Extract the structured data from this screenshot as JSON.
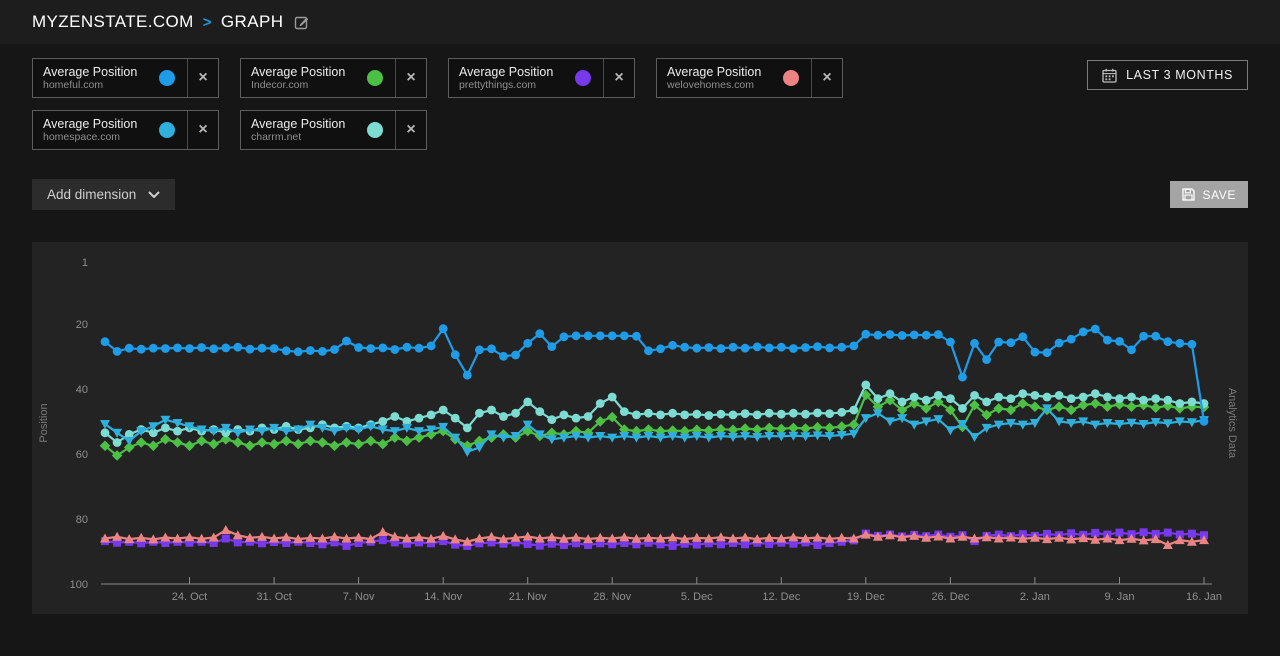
{
  "header": {
    "site": "MYZENSTATE.COM",
    "page": "GRAPH",
    "separator": ">"
  },
  "date_range": {
    "label": "LAST 3 MONTHS"
  },
  "toolbar": {
    "add_dimension": "Add dimension",
    "save": "SAVE"
  },
  "metrics": [
    {
      "label": "Average Position",
      "domain": "homeful.com",
      "color": "#1f9ce8",
      "marker": "circle"
    },
    {
      "label": "Average Position",
      "domain": "Indecor.com",
      "color": "#4cbf45",
      "marker": "diamond"
    },
    {
      "label": "Average Position",
      "domain": "prettythings.com",
      "color": "#7838ec",
      "marker": "square"
    },
    {
      "label": "Average Position",
      "domain": "welovehomes.com",
      "color": "#ec8383",
      "marker": "triangle-up"
    },
    {
      "label": "Average Position",
      "domain": "homespace.com",
      "color": "#2fafdc",
      "marker": "triangle-down"
    },
    {
      "label": "Average Position",
      "domain": "charrm.net",
      "color": "#7cdcd2",
      "marker": "circle"
    }
  ],
  "chart_data": {
    "type": "line",
    "title": "",
    "ylabel": "Position",
    "ylabel_right": "Analytics Data",
    "y_inverted": true,
    "ylim": [
      1,
      100
    ],
    "y_ticks": [
      1,
      20,
      40,
      60,
      80,
      100
    ],
    "grid": false,
    "n_points": 92,
    "x_tick_labels": [
      "24. Oct",
      "31. Oct",
      "7. Nov",
      "14. Nov",
      "21. Nov",
      "28. Nov",
      "5. Dec",
      "12. Dec",
      "19. Dec",
      "26. Dec",
      "2. Jan",
      "9. Jan",
      "16. Jan"
    ],
    "x_tick_indices": [
      7,
      14,
      21,
      28,
      35,
      42,
      49,
      56,
      63,
      70,
      77,
      84,
      91
    ],
    "draw_order": [
      2,
      3,
      1,
      5,
      4,
      0
    ],
    "series": [
      {
        "name": "Average Position homeful.com",
        "domain": "homeful.com",
        "color": "#1f9ce8",
        "marker": "circle",
        "values": [
          25.5,
          28.5,
          27.5,
          27.8,
          27.5,
          27.6,
          27.4,
          27.6,
          27.3,
          27.7,
          27.4,
          27.2,
          27.8,
          27.5,
          27.6,
          28.3,
          28.6,
          28.2,
          28.5,
          27.9,
          25.3,
          27.3,
          27.6,
          27.4,
          27.9,
          27.2,
          27.5,
          26.8,
          21.5,
          29.5,
          35.8,
          28.0,
          27.7,
          30.0,
          29.6,
          26.0,
          23.0,
          27.0,
          24.0,
          23.7,
          23.7,
          23.7,
          23.7,
          23.7,
          23.8,
          28.3,
          27.7,
          26.6,
          27.2,
          27.5,
          27.3,
          27.6,
          27.2,
          27.5,
          27.1,
          27.4,
          27.2,
          27.6,
          27.3,
          27.0,
          27.4,
          27.2,
          26.8,
          23.2,
          23.5,
          23.3,
          23.6,
          23.4,
          23.5,
          23.3,
          25.6,
          36.4,
          26.0,
          31.0,
          25.6,
          25.8,
          24.0,
          28.7,
          28.9,
          25.9,
          24.7,
          22.5,
          21.6,
          25.0,
          25.4,
          28.0,
          23.8,
          23.8,
          25.5,
          26.0,
          26.3,
          50.0
        ]
      },
      {
        "name": "Average Position Indecor.com",
        "domain": "Indecor.com",
        "color": "#4cbf45",
        "marker": "diamond",
        "values": [
          57.5,
          60.5,
          58.0,
          56.5,
          57.5,
          55.5,
          56.5,
          57.5,
          56.0,
          57.0,
          55.5,
          56.5,
          57.5,
          56.5,
          57.0,
          56.0,
          57.0,
          56.0,
          56.5,
          57.5,
          56.5,
          57.0,
          56.0,
          57.0,
          55.0,
          56.0,
          55.0,
          54.0,
          53.0,
          55.5,
          57.5,
          56.0,
          55.0,
          54.0,
          55.0,
          53.0,
          54.5,
          53.5,
          54.0,
          53.0,
          53.5,
          50.0,
          48.7,
          52.5,
          53.0,
          52.5,
          53.0,
          52.8,
          53.0,
          52.6,
          52.8,
          52.4,
          52.6,
          52.2,
          52.5,
          52.0,
          52.3,
          52.0,
          52.2,
          51.8,
          52.0,
          51.6,
          51.0,
          41.9,
          45.5,
          43.5,
          46.5,
          44.5,
          46.0,
          44.0,
          46.5,
          51.7,
          45.0,
          48.0,
          46.0,
          46.5,
          44.5,
          45.5,
          46.5,
          45.5,
          46.5,
          45.0,
          44.5,
          45.5,
          44.8,
          45.5,
          45.0,
          45.8,
          45.2,
          46.0,
          45.5,
          45.6
        ]
      },
      {
        "name": "Average Position prettythings.com",
        "domain": "prettythings.com",
        "color": "#7838ec",
        "marker": "square",
        "values": [
          86.8,
          87.3,
          87.0,
          87.5,
          87.0,
          87.4,
          87.0,
          87.3,
          87.0,
          87.4,
          86.0,
          87.2,
          87.0,
          87.5,
          87.1,
          87.4,
          87.0,
          87.4,
          87.8,
          87.2,
          88.3,
          87.4,
          87.0,
          86.5,
          87.2,
          87.6,
          87.2,
          87.5,
          86.8,
          87.9,
          88.3,
          87.5,
          87.2,
          87.6,
          87.2,
          87.7,
          88.2,
          87.6,
          88.0,
          87.5,
          88.0,
          87.5,
          87.8,
          87.4,
          87.8,
          87.3,
          87.8,
          88.3,
          87.6,
          87.9,
          87.5,
          87.8,
          87.4,
          87.8,
          87.3,
          87.7,
          87.3,
          87.6,
          87.2,
          88.0,
          87.4,
          87.0,
          86.6,
          84.5,
          85.2,
          84.8,
          85.4,
          84.9,
          85.3,
          84.8,
          85.5,
          85.0,
          86.8,
          85.2,
          84.8,
          85.3,
          84.7,
          85.2,
          84.6,
          85.0,
          84.4,
          84.9,
          84.3,
          84.8,
          84.2,
          84.7,
          84.1,
          84.6,
          84.2,
          84.8,
          84.5,
          85.0
        ]
      },
      {
        "name": "Average Position welovehomes.com",
        "domain": "welovehomes.com",
        "color": "#ec8383",
        "marker": "triangle-up",
        "values": [
          86.0,
          85.5,
          86.2,
          85.8,
          86.3,
          85.7,
          86.0,
          85.6,
          86.1,
          85.7,
          83.4,
          85.0,
          85.8,
          85.5,
          86.0,
          85.6,
          86.2,
          85.8,
          86.0,
          85.5,
          86.0,
          85.7,
          86.2,
          84.0,
          85.5,
          86.0,
          85.6,
          86.1,
          85.2,
          86.3,
          87.0,
          86.0,
          85.5,
          86.2,
          85.8,
          85.4,
          86.0,
          85.6,
          86.1,
          85.7,
          86.2,
          85.8,
          86.0,
          85.6,
          86.1,
          85.8,
          86.0,
          85.7,
          86.2,
          85.8,
          86.0,
          85.6,
          86.0,
          85.7,
          86.2,
          85.8,
          86.0,
          85.6,
          86.0,
          85.7,
          86.1,
          85.8,
          86.0,
          84.8,
          85.5,
          85.0,
          85.6,
          85.2,
          85.8,
          85.4,
          86.0,
          85.5,
          86.0,
          85.6,
          86.0,
          85.7,
          86.1,
          85.8,
          86.2,
          85.8,
          86.3,
          85.9,
          86.4,
          86.0,
          86.5,
          86.1,
          86.6,
          86.2,
          88.0,
          86.5,
          87.0,
          86.5
        ]
      },
      {
        "name": "Average Position homespace.com",
        "domain": "homespace.com",
        "color": "#2fafdc",
        "marker": "triangle-down",
        "values": [
          50.8,
          53.5,
          56.0,
          53.0,
          51.5,
          49.5,
          50.5,
          51.5,
          52.5,
          53.0,
          52.0,
          53.5,
          52.5,
          53.0,
          52.0,
          53.0,
          52.5,
          51.0,
          52.0,
          53.0,
          52.0,
          52.5,
          51.5,
          52.5,
          53.0,
          52.0,
          53.0,
          52.5,
          51.7,
          55.0,
          59.4,
          58.0,
          54.0,
          55.0,
          54.5,
          51.0,
          54.0,
          55.5,
          55.0,
          54.5,
          55.0,
          54.5,
          55.0,
          54.5,
          55.0,
          54.5,
          55.0,
          54.5,
          55.0,
          54.5,
          55.0,
          54.5,
          54.8,
          54.5,
          54.8,
          54.5,
          54.6,
          54.4,
          54.6,
          54.3,
          54.5,
          54.2,
          53.8,
          49.0,
          47.5,
          50.0,
          49.0,
          51.0,
          50.0,
          49.3,
          52.7,
          50.8,
          54.8,
          52.0,
          51.0,
          50.5,
          51.0,
          50.5,
          46.0,
          50.0,
          50.5,
          50.0,
          51.0,
          50.5,
          50.8,
          50.4,
          50.8,
          50.2,
          50.6,
          50.0,
          50.3,
          49.6
        ]
      },
      {
        "name": "Average Position charrm.net",
        "domain": "charrm.net",
        "color": "#7cdcd2",
        "marker": "circle",
        "values": [
          53.5,
          56.5,
          54.0,
          52.5,
          53.5,
          52.0,
          53.0,
          52.0,
          53.0,
          52.5,
          53.5,
          52.5,
          53.0,
          52.0,
          52.5,
          51.5,
          52.5,
          52.0,
          51.0,
          52.0,
          51.5,
          52.0,
          51.0,
          50.0,
          48.5,
          50.0,
          49.0,
          48.0,
          46.5,
          49.0,
          52.0,
          47.5,
          46.5,
          48.5,
          47.5,
          44.0,
          47.0,
          49.5,
          48.0,
          49.0,
          48.5,
          44.5,
          42.5,
          47.0,
          48.0,
          47.5,
          48.0,
          47.5,
          48.0,
          47.8,
          48.2,
          47.8,
          48.0,
          47.6,
          48.0,
          47.5,
          47.8,
          47.5,
          47.8,
          47.4,
          47.6,
          47.2,
          46.5,
          38.8,
          43.0,
          41.5,
          44.0,
          42.5,
          43.5,
          42.0,
          43.0,
          46.0,
          42.0,
          44.0,
          42.5,
          43.0,
          41.5,
          42.0,
          42.5,
          42.0,
          43.0,
          42.5,
          41.5,
          42.5,
          43.0,
          42.5,
          43.5,
          43.0,
          43.5,
          44.5,
          44.0,
          44.5
        ]
      }
    ]
  }
}
